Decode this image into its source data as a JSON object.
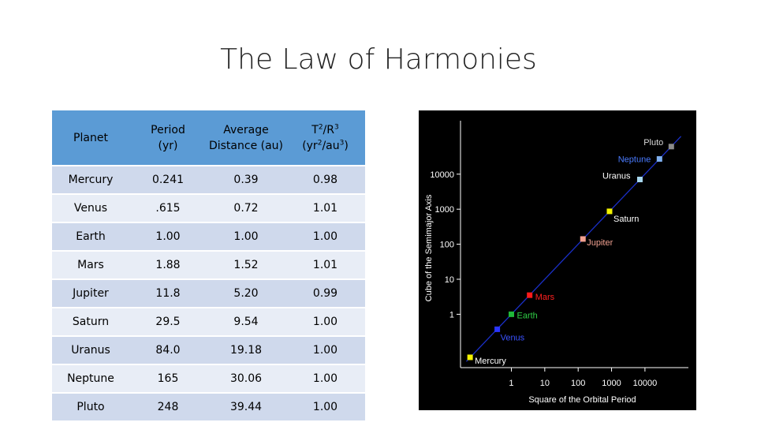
{
  "title": "The Law of Harmonies",
  "table": {
    "headers": {
      "planet": "Planet",
      "period_l1": "Period",
      "period_l2": "(yr)",
      "dist_l1": "Average",
      "dist_l2": "Distance (au)",
      "ratio_l1_base": "T",
      "ratio_l1_sup1": "2",
      "ratio_l1_mid": "/R",
      "ratio_l1_sup2": "3",
      "ratio_l2_a": "(yr",
      "ratio_l2_sup1": "2",
      "ratio_l2_b": "/au",
      "ratio_l2_sup2": "3",
      "ratio_l2_c": ")"
    },
    "rows": [
      {
        "planet": "Mercury",
        "period": "0.241",
        "distance": "0.39",
        "ratio": "0.98"
      },
      {
        "planet": "Venus",
        "period": ".615",
        "distance": "0.72",
        "ratio": "1.01"
      },
      {
        "planet": "Earth",
        "period": "1.00",
        "distance": "1.00",
        "ratio": "1.00"
      },
      {
        "planet": "Mars",
        "period": "1.88",
        "distance": "1.52",
        "ratio": "1.01"
      },
      {
        "planet": "Jupiter",
        "period": "11.8",
        "distance": "5.20",
        "ratio": "0.99"
      },
      {
        "planet": "Saturn",
        "period": "29.5",
        "distance": "9.54",
        "ratio": "1.00"
      },
      {
        "planet": "Uranus",
        "period": "84.0",
        "distance": "19.18",
        "ratio": "1.00"
      },
      {
        "planet": "Neptune",
        "period": "165",
        "distance": "30.06",
        "ratio": "1.00"
      },
      {
        "planet": "Pluto",
        "period": "248",
        "distance": "39.44",
        "ratio": "1.00"
      }
    ]
  },
  "chart_data": {
    "type": "scatter",
    "xlabel": "Square of the Orbital Period",
    "ylabel": "Cube of the Semimajor Axis",
    "x_scale": "log",
    "y_scale": "log",
    "xlim": [
      0.03,
      200000
    ],
    "ylim": [
      0.03,
      200000
    ],
    "x_ticks": [
      "1",
      "10",
      "100",
      "1000",
      "10000"
    ],
    "y_ticks": [
      "1",
      "10",
      "100",
      "1000",
      "10000"
    ],
    "background": "#000000",
    "fit_line_color": "#1a2fc8",
    "grid": false,
    "points": [
      {
        "name": "Mercury",
        "x": 0.058,
        "y": 0.059,
        "color": "#f2f200",
        "label_color": "#ffffff"
      },
      {
        "name": "Venus",
        "x": 0.378,
        "y": 0.373,
        "color": "#2a35ff",
        "label_color": "#3a52ff"
      },
      {
        "name": "Earth",
        "x": 1,
        "y": 1,
        "color": "#1fb83a",
        "label_color": "#2fcf46"
      },
      {
        "name": "Mars",
        "x": 3.53,
        "y": 3.51,
        "color": "#ff1a1a",
        "label_color": "#ff2020"
      },
      {
        "name": "Jupiter",
        "x": 139,
        "y": 141,
        "color": "#f2a090",
        "label_color": "#f0a090"
      },
      {
        "name": "Saturn",
        "x": 870,
        "y": 868,
        "color": "#f2f200",
        "label_color": "#ffffff"
      },
      {
        "name": "Uranus",
        "x": 7056,
        "y": 7056,
        "color": "#a8d8f0",
        "label_color": "#ffffff"
      },
      {
        "name": "Neptune",
        "x": 27225,
        "y": 27162,
        "color": "#7fb0f0",
        "label_color": "#4a7bff"
      },
      {
        "name": "Pluto",
        "x": 61504,
        "y": 61349,
        "color": "#8a8a8a",
        "label_color": "#d8d8d8"
      }
    ]
  }
}
